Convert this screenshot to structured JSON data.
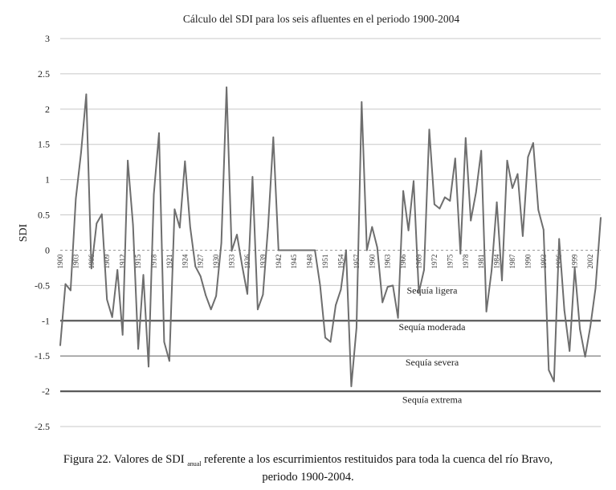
{
  "chart_data": {
    "type": "line",
    "title": "Cálculo del SDI para los seis afluentes en el periodo 1900-2004",
    "ylabel": "SDI",
    "xlabel": "",
    "ylim": [
      -2.5,
      3
    ],
    "yticks": [
      "3",
      "2.5",
      "2",
      "1.5",
      "1",
      "0.5",
      "0",
      "-0.5",
      "-1",
      "-1.5",
      "-2",
      "-2.5"
    ],
    "xtick_labels": [
      "1900",
      "1903",
      "1906",
      "1909",
      "1912",
      "1915",
      "1918",
      "1921",
      "1924",
      "1927",
      "1930",
      "1933",
      "1936",
      "1939",
      "1942",
      "1945",
      "1948",
      "1951",
      "1954",
      "1957",
      "1960",
      "1963",
      "1966",
      "1969",
      "1972",
      "1975",
      "1978",
      "1981",
      "1984",
      "1987",
      "1990",
      "1993",
      "1996",
      "1999",
      "2002"
    ],
    "grid": true,
    "thresholds": [
      {
        "value": -1,
        "label": "Sequía moderada"
      },
      {
        "value": -1.5,
        "label": "Sequía severa"
      },
      {
        "value": -2,
        "label": "Sequía extrema"
      }
    ],
    "zone_labels": [
      {
        "label": "Sequía ligera",
        "y": -0.57
      },
      {
        "label": "Sequía moderada",
        "y": -1.09
      },
      {
        "label": "Sequía severa",
        "y": -1.59
      },
      {
        "label": "Sequía extrema",
        "y": -2.12
      }
    ],
    "series": [
      {
        "x": [
          1900,
          1901,
          1902,
          1903,
          1904,
          1905,
          1906,
          1907,
          1908,
          1909,
          1910,
          1911,
          1912,
          1913,
          1914,
          1915,
          1916,
          1917,
          1918,
          1919,
          1920,
          1921,
          1922,
          1923,
          1924,
          1925,
          1926,
          1927,
          1928,
          1929,
          1930,
          1931,
          1932,
          1933,
          1934,
          1935,
          1936,
          1937,
          1938,
          1939,
          1940,
          1941,
          1942,
          1943,
          1944,
          1945,
          1946,
          1947,
          1948,
          1949,
          1950,
          1951,
          1952,
          1953,
          1954,
          1955,
          1956,
          1957,
          1958,
          1959,
          1960,
          1961,
          1962,
          1963,
          1964,
          1965,
          1966,
          1967,
          1968,
          1969,
          1970,
          1971,
          1972,
          1973,
          1974,
          1975,
          1976,
          1977,
          1978,
          1979,
          1980,
          1981,
          1982,
          1983,
          1984,
          1985,
          1986,
          1987,
          1988,
          1989,
          1990,
          1991,
          1992,
          1993,
          1994,
          1995,
          1996,
          1997,
          1998,
          1999,
          2000,
          2001,
          2002,
          2003,
          2004
        ],
        "values": [
          -1.35,
          -0.48,
          -0.57,
          0.73,
          1.38,
          2.21,
          -0.26,
          0.38,
          0.51,
          -0.7,
          -0.95,
          -0.28,
          -1.2,
          1.27,
          0.36,
          -1.4,
          -0.35,
          -1.65,
          0.79,
          1.66,
          -1.3,
          -1.57,
          0.58,
          0.32,
          1.26,
          0.33,
          -0.23,
          -0.37,
          -0.64,
          -0.84,
          -0.65,
          0.1,
          2.31,
          -0.01,
          0.22,
          -0.22,
          -0.62,
          1.04,
          -0.84,
          -0.63,
          0.33,
          1.6,
          0,
          0,
          0,
          0,
          0,
          0,
          0,
          0,
          -0.5,
          -1.24,
          -1.3,
          -0.78,
          -0.56,
          0,
          -1.93,
          -1.1,
          2.1,
          0,
          0.33,
          0.04,
          -0.74,
          -0.52,
          -0.5,
          -0.96,
          0.84,
          0.28,
          0.98,
          -0.6,
          -0.28,
          1.71,
          0.65,
          0.59,
          0.75,
          0.7,
          1.3,
          -0.05,
          1.59,
          0.42,
          0.82,
          1.41,
          -0.87,
          -0.29,
          0.68,
          -0.43,
          1.27,
          0.88,
          1.08,
          0.2,
          1.32,
          1.52,
          0.57,
          0.29,
          -1.7,
          -1.86,
          0.16,
          -0.85,
          -1.43,
          -0.25,
          -1.12,
          -1.51,
          -1.08,
          -0.54,
          0.46
        ]
      }
    ]
  },
  "caption": {
    "line1_pre": "Figura 22. Valores de SDI",
    "line1_sub": "anual",
    "line1_post": "referente a los escurrimientos restituidos para toda la cuenca del río Bravo,",
    "line2": "periodo 1900-2004."
  }
}
